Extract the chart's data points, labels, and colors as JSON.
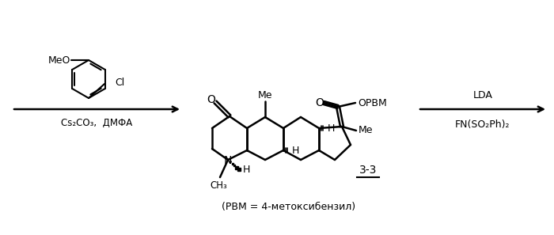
{
  "bg_color": "#ffffff",
  "text_color": "#000000",
  "figsize": [
    7.0,
    2.97
  ],
  "dpi": 100,
  "reagent1": "Cs₂CO₃,  ДМФА",
  "reagent2_top": "LDA",
  "reagent2_bot": "FN(SO₂Ph)₂",
  "compound_label": "3-3",
  "pbm_note": "(PBM = 4-метоксибензил)"
}
